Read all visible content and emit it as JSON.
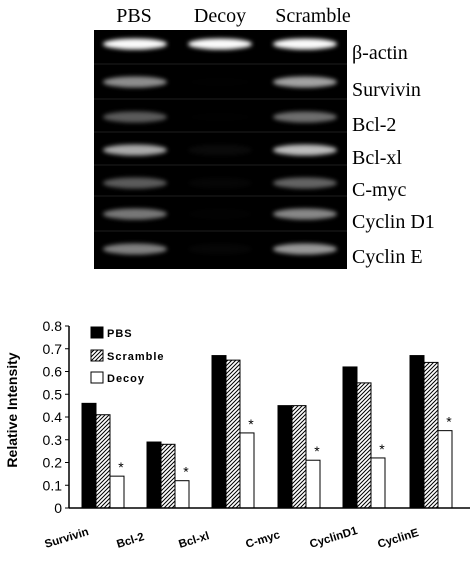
{
  "gel": {
    "lanes": [
      "PBS",
      "Decoy",
      "Scramble"
    ],
    "rows": [
      {
        "label": "β-actin",
        "intensity": [
          1.0,
          1.0,
          1.0
        ]
      },
      {
        "label": "Survivin",
        "intensity": [
          0.72,
          0.0,
          0.78
        ]
      },
      {
        "label": "Bcl-2",
        "intensity": [
          0.55,
          0.0,
          0.62
        ]
      },
      {
        "label": "Bcl-xl",
        "intensity": [
          0.8,
          0.12,
          0.85
        ]
      },
      {
        "label": "C-myc",
        "intensity": [
          0.55,
          0.08,
          0.58
        ]
      },
      {
        "label": "Cyclin D1",
        "intensity": [
          0.65,
          0.04,
          0.7
        ]
      },
      {
        "label": "Cyclin E",
        "intensity": [
          0.68,
          0.08,
          0.75
        ]
      }
    ]
  },
  "chart_data": {
    "type": "bar",
    "ylabel": "Relative Intensity",
    "ylim": [
      0,
      0.8
    ],
    "yticks": [
      "0",
      "0.1",
      "0.2",
      "0.3",
      "0.4",
      "0.5",
      "0.6",
      "0.7",
      "0.8"
    ],
    "categories": [
      "Survivin",
      "Bcl-2",
      "Bcl-xl",
      "C-myc",
      "CyclinD1",
      "CyclinE"
    ],
    "series": [
      {
        "name": "PBS",
        "values": [
          0.46,
          0.29,
          0.67,
          0.45,
          0.62,
          0.67
        ]
      },
      {
        "name": "Scramble",
        "values": [
          0.41,
          0.28,
          0.65,
          0.45,
          0.55,
          0.64
        ]
      },
      {
        "name": "Decoy",
        "values": [
          0.14,
          0.12,
          0.33,
          0.21,
          0.22,
          0.34
        ]
      }
    ],
    "annotations": [
      "*",
      "*",
      "*",
      "*",
      "*",
      "*"
    ],
    "legend": "top-left",
    "grid": false
  }
}
